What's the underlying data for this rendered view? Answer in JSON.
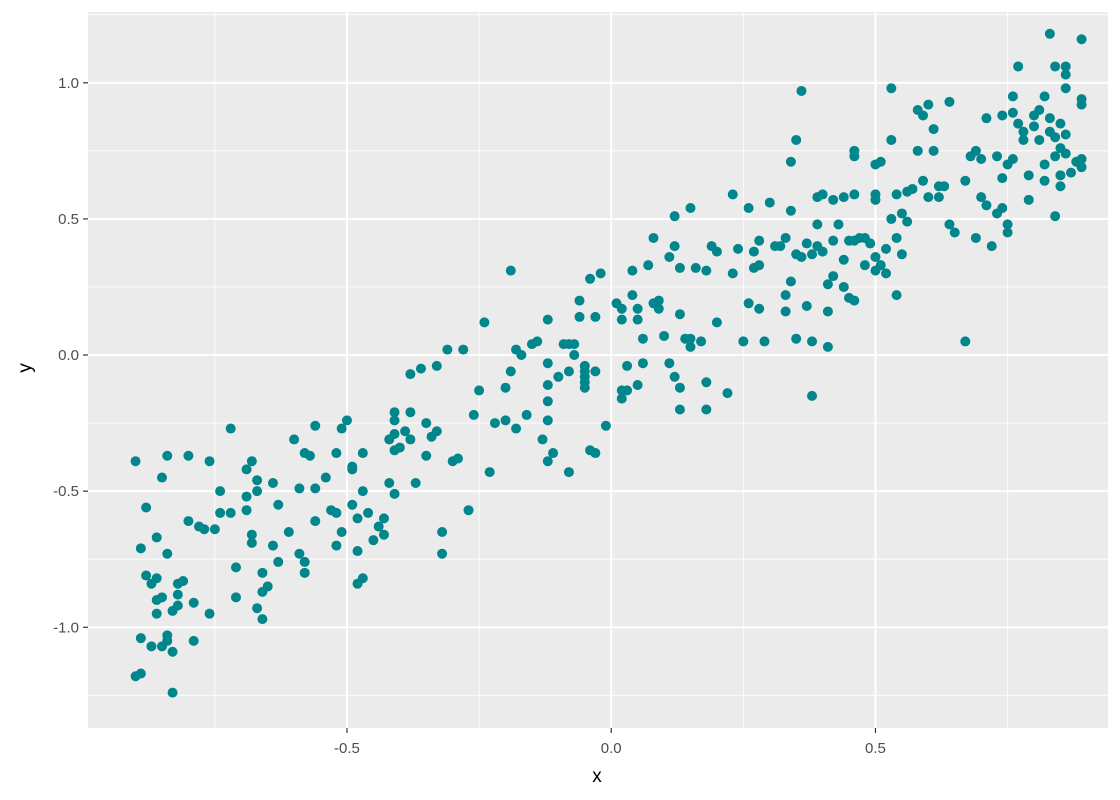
{
  "chart_data": {
    "type": "scatter",
    "title": "",
    "xlabel": "x",
    "ylabel": "y",
    "xlim": [
      -0.99,
      0.94
    ],
    "ylim": [
      -1.37,
      1.26
    ],
    "x_ticks": [
      -0.5,
      0.0,
      0.5
    ],
    "x_tick_labels": [
      "-0.5",
      "0.0",
      "0.5"
    ],
    "y_ticks": [
      -1.0,
      -0.5,
      0.0,
      0.5,
      1.0
    ],
    "y_tick_labels": [
      "-1.0",
      "-0.5",
      "0.0",
      "0.5",
      "1.0"
    ],
    "grid": true,
    "legend": "none",
    "colors": {
      "point": "#00868B",
      "panel": "#EBEBEB",
      "grid": "#FFFFFF"
    },
    "points": [
      [
        -0.9,
        -0.39
      ],
      [
        -0.88,
        -0.56
      ],
      [
        -0.89,
        -0.71
      ],
      [
        -0.88,
        -0.81
      ],
      [
        -0.87,
        -0.84
      ],
      [
        -0.86,
        -0.82
      ],
      [
        -0.86,
        -0.67
      ],
      [
        -0.86,
        -0.9
      ],
      [
        -0.86,
        -0.95
      ],
      [
        -0.89,
        -1.04
      ],
      [
        -0.87,
        -1.07
      ],
      [
        -0.85,
        -1.07
      ],
      [
        -0.84,
        -1.05
      ],
      [
        -0.84,
        -1.03
      ],
      [
        -0.9,
        -1.18
      ],
      [
        -0.89,
        -1.17
      ],
      [
        -0.83,
        -1.24
      ],
      [
        -0.84,
        -0.37
      ],
      [
        -0.85,
        -0.45
      ],
      [
        -0.84,
        -0.73
      ],
      [
        -0.82,
        -0.84
      ],
      [
        -0.82,
        -0.88
      ],
      [
        -0.82,
        -0.92
      ],
      [
        -0.83,
        -0.94
      ],
      [
        -0.85,
        -0.89
      ],
      [
        -0.83,
        -1.09
      ],
      [
        -0.81,
        -0.83
      ],
      [
        -0.8,
        -0.37
      ],
      [
        -0.8,
        -0.61
      ],
      [
        -0.78,
        -0.63
      ],
      [
        -0.77,
        -0.64
      ],
      [
        -0.76,
        -0.95
      ],
      [
        -0.79,
        -0.91
      ],
      [
        -0.79,
        -1.05
      ],
      [
        -0.76,
        -0.39
      ],
      [
        -0.75,
        -0.64
      ],
      [
        -0.74,
        -0.58
      ],
      [
        -0.74,
        -0.5
      ],
      [
        -0.72,
        -0.58
      ],
      [
        -0.72,
        -0.27
      ],
      [
        -0.71,
        -0.78
      ],
      [
        -0.71,
        -0.89
      ],
      [
        -0.69,
        -0.57
      ],
      [
        -0.69,
        -0.52
      ],
      [
        -0.69,
        -0.42
      ],
      [
        -0.68,
        -0.39
      ],
      [
        -0.68,
        -0.69
      ],
      [
        -0.68,
        -0.66
      ],
      [
        -0.67,
        -0.5
      ],
      [
        -0.67,
        -0.46
      ],
      [
        -0.67,
        -0.93
      ],
      [
        -0.66,
        -0.8
      ],
      [
        -0.66,
        -0.87
      ],
      [
        -0.66,
        -0.97
      ],
      [
        -0.65,
        -0.85
      ],
      [
        -0.64,
        -0.47
      ],
      [
        -0.64,
        -0.7
      ],
      [
        -0.63,
        -0.76
      ],
      [
        -0.63,
        -0.55
      ],
      [
        -0.61,
        -0.65
      ],
      [
        -0.6,
        -0.31
      ],
      [
        -0.59,
        -0.49
      ],
      [
        -0.59,
        -0.73
      ],
      [
        -0.58,
        -0.76
      ],
      [
        -0.58,
        -0.8
      ],
      [
        -0.58,
        -0.36
      ],
      [
        -0.57,
        -0.37
      ],
      [
        -0.56,
        -0.26
      ],
      [
        -0.56,
        -0.61
      ],
      [
        -0.56,
        -0.49
      ],
      [
        -0.54,
        -0.45
      ],
      [
        -0.52,
        -0.58
      ],
      [
        -0.53,
        -0.57
      ],
      [
        -0.52,
        -0.36
      ],
      [
        -0.52,
        -0.7
      ],
      [
        -0.51,
        -0.65
      ],
      [
        -0.51,
        -0.27
      ],
      [
        -0.5,
        -0.24
      ],
      [
        -0.49,
        -0.41
      ],
      [
        -0.49,
        -0.42
      ],
      [
        -0.49,
        -0.55
      ],
      [
        -0.48,
        -0.6
      ],
      [
        -0.48,
        -0.72
      ],
      [
        -0.48,
        -0.84
      ],
      [
        -0.47,
        -0.82
      ],
      [
        -0.47,
        -0.36
      ],
      [
        -0.47,
        -0.5
      ],
      [
        -0.46,
        -0.58
      ],
      [
        -0.45,
        -0.68
      ],
      [
        -0.44,
        -0.63
      ],
      [
        -0.43,
        -0.6
      ],
      [
        -0.43,
        -0.66
      ],
      [
        -0.42,
        -0.31
      ],
      [
        -0.42,
        -0.47
      ],
      [
        -0.41,
        -0.21
      ],
      [
        -0.41,
        -0.24
      ],
      [
        -0.41,
        -0.29
      ],
      [
        -0.41,
        -0.35
      ],
      [
        -0.41,
        -0.51
      ],
      [
        -0.4,
        -0.34
      ],
      [
        -0.39,
        -0.28
      ],
      [
        -0.38,
        -0.31
      ],
      [
        -0.38,
        -0.21
      ],
      [
        -0.38,
        -0.07
      ],
      [
        -0.37,
        -0.47
      ],
      [
        -0.36,
        -0.05
      ],
      [
        -0.35,
        -0.25
      ],
      [
        -0.35,
        -0.37
      ],
      [
        -0.34,
        -0.3
      ],
      [
        -0.33,
        -0.04
      ],
      [
        -0.33,
        -0.28
      ],
      [
        -0.32,
        -0.65
      ],
      [
        -0.32,
        -0.73
      ],
      [
        -0.31,
        0.02
      ],
      [
        -0.3,
        -0.39
      ],
      [
        -0.29,
        -0.38
      ],
      [
        -0.28,
        0.02
      ],
      [
        -0.27,
        -0.57
      ],
      [
        -0.26,
        -0.22
      ],
      [
        -0.25,
        -0.13
      ],
      [
        -0.24,
        0.12
      ],
      [
        -0.23,
        -0.43
      ],
      [
        -0.22,
        -0.25
      ],
      [
        -0.2,
        -0.24
      ],
      [
        -0.2,
        -0.12
      ],
      [
        -0.19,
        -0.06
      ],
      [
        -0.19,
        0.31
      ],
      [
        -0.18,
        0.02
      ],
      [
        -0.18,
        -0.27
      ],
      [
        -0.17,
        0.0
      ],
      [
        -0.16,
        -0.22
      ],
      [
        -0.15,
        0.04
      ],
      [
        -0.14,
        0.05
      ],
      [
        -0.13,
        -0.31
      ],
      [
        -0.12,
        0.13
      ],
      [
        -0.12,
        -0.03
      ],
      [
        -0.12,
        -0.11
      ],
      [
        -0.12,
        -0.17
      ],
      [
        -0.12,
        -0.24
      ],
      [
        -0.12,
        -0.39
      ],
      [
        -0.11,
        -0.36
      ],
      [
        -0.1,
        -0.08
      ],
      [
        -0.09,
        0.04
      ],
      [
        -0.08,
        -0.06
      ],
      [
        -0.08,
        0.04
      ],
      [
        -0.08,
        -0.43
      ],
      [
        -0.07,
        0.0
      ],
      [
        -0.07,
        0.04
      ],
      [
        -0.06,
        0.2
      ],
      [
        -0.06,
        0.14
      ],
      [
        -0.05,
        -0.04
      ],
      [
        -0.05,
        -0.06
      ],
      [
        -0.05,
        -0.08
      ],
      [
        -0.05,
        -0.1
      ],
      [
        -0.05,
        -0.12
      ],
      [
        -0.04,
        0.28
      ],
      [
        -0.04,
        -0.35
      ],
      [
        -0.03,
        0.14
      ],
      [
        -0.03,
        -0.06
      ],
      [
        -0.03,
        -0.36
      ],
      [
        -0.02,
        0.3
      ],
      [
        -0.01,
        -0.26
      ],
      [
        0.01,
        0.19
      ],
      [
        0.02,
        0.13
      ],
      [
        0.02,
        0.17
      ],
      [
        0.02,
        -0.13
      ],
      [
        0.02,
        -0.16
      ],
      [
        0.03,
        -0.13
      ],
      [
        0.03,
        -0.04
      ],
      [
        0.04,
        0.31
      ],
      [
        0.04,
        0.22
      ],
      [
        0.05,
        0.17
      ],
      [
        0.05,
        0.13
      ],
      [
        0.05,
        -0.11
      ],
      [
        0.06,
        -0.03
      ],
      [
        0.06,
        0.06
      ],
      [
        0.07,
        0.33
      ],
      [
        0.08,
        0.43
      ],
      [
        0.08,
        0.19
      ],
      [
        0.09,
        0.2
      ],
      [
        0.09,
        0.17
      ],
      [
        0.1,
        0.07
      ],
      [
        0.11,
        0.36
      ],
      [
        0.11,
        -0.03
      ],
      [
        0.12,
        0.51
      ],
      [
        0.12,
        0.4
      ],
      [
        0.12,
        -0.08
      ],
      [
        0.13,
        0.32
      ],
      [
        0.13,
        0.15
      ],
      [
        0.13,
        -0.12
      ],
      [
        0.13,
        -0.2
      ],
      [
        0.14,
        0.06
      ],
      [
        0.15,
        0.54
      ],
      [
        0.15,
        0.03
      ],
      [
        0.15,
        0.06
      ],
      [
        0.16,
        0.32
      ],
      [
        0.17,
        0.05
      ],
      [
        0.18,
        0.31
      ],
      [
        0.18,
        -0.1
      ],
      [
        0.18,
        -0.2
      ],
      [
        0.19,
        0.4
      ],
      [
        0.2,
        0.38
      ],
      [
        0.2,
        0.12
      ],
      [
        0.22,
        -0.14
      ],
      [
        0.23,
        0.59
      ],
      [
        0.23,
        0.3
      ],
      [
        0.24,
        0.39
      ],
      [
        0.25,
        0.05
      ],
      [
        0.26,
        0.54
      ],
      [
        0.26,
        0.19
      ],
      [
        0.27,
        0.38
      ],
      [
        0.27,
        0.32
      ],
      [
        0.28,
        0.42
      ],
      [
        0.28,
        0.17
      ],
      [
        0.28,
        0.33
      ],
      [
        0.29,
        0.05
      ],
      [
        0.3,
        0.56
      ],
      [
        0.31,
        0.4
      ],
      [
        0.32,
        0.4
      ],
      [
        0.33,
        0.22
      ],
      [
        0.33,
        0.16
      ],
      [
        0.33,
        0.43
      ],
      [
        0.34,
        0.71
      ],
      [
        0.34,
        0.53
      ],
      [
        0.34,
        0.27
      ],
      [
        0.35,
        0.79
      ],
      [
        0.35,
        0.06
      ],
      [
        0.35,
        0.37
      ],
      [
        0.36,
        0.36
      ],
      [
        0.36,
        0.97
      ],
      [
        0.37,
        0.41
      ],
      [
        0.37,
        0.18
      ],
      [
        0.38,
        0.37
      ],
      [
        0.38,
        -0.15
      ],
      [
        0.38,
        0.05
      ],
      [
        0.39,
        0.58
      ],
      [
        0.39,
        0.4
      ],
      [
        0.39,
        0.48
      ],
      [
        0.4,
        0.59
      ],
      [
        0.4,
        0.38
      ],
      [
        0.41,
        0.16
      ],
      [
        0.41,
        0.03
      ],
      [
        0.41,
        0.26
      ],
      [
        0.42,
        0.57
      ],
      [
        0.42,
        0.29
      ],
      [
        0.42,
        0.42
      ],
      [
        0.43,
        0.48
      ],
      [
        0.44,
        0.58
      ],
      [
        0.44,
        0.25
      ],
      [
        0.44,
        0.35
      ],
      [
        0.45,
        0.42
      ],
      [
        0.45,
        0.21
      ],
      [
        0.46,
        0.2
      ],
      [
        0.46,
        0.73
      ],
      [
        0.46,
        0.75
      ],
      [
        0.46,
        0.59
      ],
      [
        0.46,
        0.42
      ],
      [
        0.47,
        0.43
      ],
      [
        0.48,
        0.33
      ],
      [
        0.48,
        0.43
      ],
      [
        0.49,
        0.41
      ],
      [
        0.5,
        0.36
      ],
      [
        0.5,
        0.7
      ],
      [
        0.5,
        0.59
      ],
      [
        0.5,
        0.57
      ],
      [
        0.5,
        0.31
      ],
      [
        0.51,
        0.71
      ],
      [
        0.51,
        0.33
      ],
      [
        0.52,
        0.3
      ],
      [
        0.52,
        0.39
      ],
      [
        0.53,
        0.98
      ],
      [
        0.53,
        0.79
      ],
      [
        0.53,
        0.5
      ],
      [
        0.54,
        0.43
      ],
      [
        0.54,
        0.22
      ],
      [
        0.54,
        0.59
      ],
      [
        0.55,
        0.52
      ],
      [
        0.55,
        0.37
      ],
      [
        0.56,
        0.49
      ],
      [
        0.56,
        0.6
      ],
      [
        0.57,
        0.61
      ],
      [
        0.58,
        0.9
      ],
      [
        0.58,
        0.75
      ],
      [
        0.59,
        0.88
      ],
      [
        0.59,
        0.64
      ],
      [
        0.6,
        0.58
      ],
      [
        0.6,
        0.92
      ],
      [
        0.61,
        0.83
      ],
      [
        0.61,
        0.75
      ],
      [
        0.62,
        0.62
      ],
      [
        0.62,
        0.58
      ],
      [
        0.63,
        0.62
      ],
      [
        0.64,
        0.93
      ],
      [
        0.64,
        0.48
      ],
      [
        0.65,
        0.45
      ],
      [
        0.67,
        0.05
      ],
      [
        0.67,
        0.64
      ],
      [
        0.68,
        0.73
      ],
      [
        0.69,
        0.75
      ],
      [
        0.69,
        0.43
      ],
      [
        0.7,
        0.72
      ],
      [
        0.7,
        0.58
      ],
      [
        0.71,
        0.87
      ],
      [
        0.71,
        0.55
      ],
      [
        0.72,
        0.4
      ],
      [
        0.73,
        0.73
      ],
      [
        0.73,
        0.52
      ],
      [
        0.74,
        0.65
      ],
      [
        0.74,
        0.88
      ],
      [
        0.74,
        0.54
      ],
      [
        0.75,
        0.7
      ],
      [
        0.75,
        0.48
      ],
      [
        0.75,
        0.45
      ],
      [
        0.76,
        0.95
      ],
      [
        0.76,
        0.72
      ],
      [
        0.76,
        0.89
      ],
      [
        0.77,
        1.06
      ],
      [
        0.77,
        0.85
      ],
      [
        0.78,
        0.79
      ],
      [
        0.78,
        0.82
      ],
      [
        0.79,
        0.66
      ],
      [
        0.79,
        0.57
      ],
      [
        0.8,
        0.88
      ],
      [
        0.8,
        0.84
      ],
      [
        0.81,
        0.9
      ],
      [
        0.81,
        0.79
      ],
      [
        0.82,
        0.95
      ],
      [
        0.82,
        0.7
      ],
      [
        0.82,
        0.64
      ],
      [
        0.83,
        1.18
      ],
      [
        0.83,
        0.87
      ],
      [
        0.83,
        0.82
      ],
      [
        0.84,
        0.8
      ],
      [
        0.84,
        0.73
      ],
      [
        0.84,
        0.51
      ],
      [
        0.84,
        1.06
      ],
      [
        0.85,
        0.85
      ],
      [
        0.85,
        0.76
      ],
      [
        0.85,
        0.66
      ],
      [
        0.85,
        0.62
      ],
      [
        0.86,
        1.06
      ],
      [
        0.86,
        1.03
      ],
      [
        0.86,
        0.98
      ],
      [
        0.86,
        0.81
      ],
      [
        0.86,
        0.74
      ],
      [
        0.87,
        0.67
      ],
      [
        0.88,
        0.71
      ],
      [
        0.89,
        0.72
      ],
      [
        0.89,
        1.16
      ],
      [
        0.89,
        0.94
      ],
      [
        0.89,
        0.92
      ],
      [
        0.89,
        0.69
      ]
    ]
  }
}
